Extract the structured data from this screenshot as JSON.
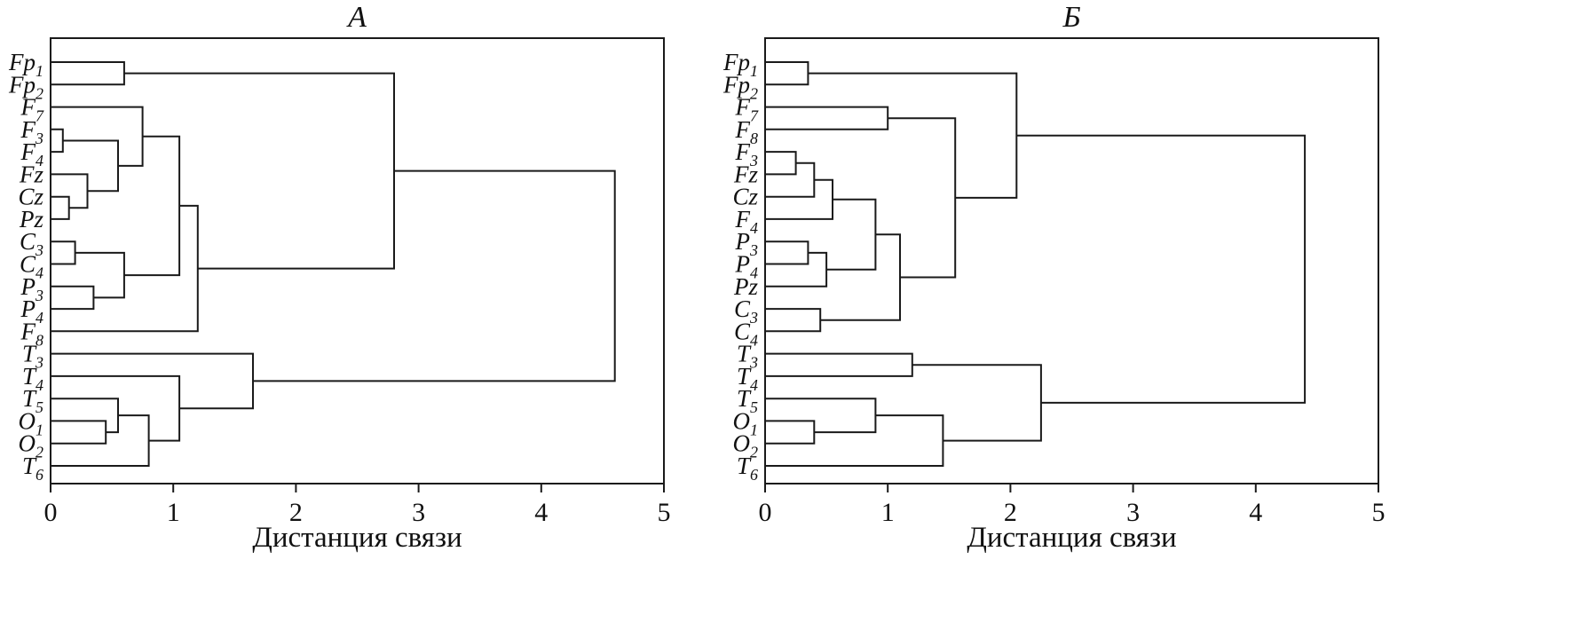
{
  "figure": {
    "background": "#ffffff",
    "line_color": "#1a1a1a",
    "panel_count": 2
  },
  "chart_data": [
    {
      "type": "dendrogram",
      "title": "А",
      "orientation": "horizontal",
      "xlabel": "Дистанция связи",
      "xlim": [
        0,
        5
      ],
      "xticks": [
        0,
        1,
        2,
        3,
        4,
        5
      ],
      "grid": false,
      "leaves": [
        "Fp1",
        "Fp2",
        "F7",
        "F3",
        "F4",
        "Fz",
        "Cz",
        "Pz",
        "C3",
        "C4",
        "P3",
        "P4",
        "F8",
        "T3",
        "T4",
        "T5",
        "O1",
        "O2",
        "T6"
      ],
      "merges": [
        [
          "a0",
          "F3",
          "F4",
          0.1
        ],
        [
          "a1",
          "Cz",
          "Pz",
          0.15
        ],
        [
          "a2",
          "Fz",
          "a1",
          0.3
        ],
        [
          "a3",
          "a0",
          "a2",
          0.55
        ],
        [
          "a4",
          "F7",
          "a3",
          0.75
        ],
        [
          "a5",
          "C3",
          "C4",
          0.2
        ],
        [
          "a6",
          "P3",
          "P4",
          0.35
        ],
        [
          "a7",
          "a5",
          "a6",
          0.6
        ],
        [
          "a8",
          "a4",
          "a7",
          1.05
        ],
        [
          "a9",
          "a8",
          "F8",
          1.2
        ],
        [
          "a10",
          "Fp1",
          "Fp2",
          0.6
        ],
        [
          "a11",
          "a10",
          "a9",
          2.8
        ],
        [
          "a12",
          "O1",
          "O2",
          0.45
        ],
        [
          "a13",
          "T5",
          "a12",
          0.55
        ],
        [
          "a14",
          "a13",
          "T6",
          0.8
        ],
        [
          "a15",
          "T4",
          "a14",
          1.05
        ],
        [
          "a16",
          "T3",
          "a15",
          1.65
        ],
        [
          "a17",
          "a11",
          "a16",
          4.6
        ]
      ]
    },
    {
      "type": "dendrogram",
      "title": "Б",
      "orientation": "horizontal",
      "xlabel": "Дистанция связи",
      "xlim": [
        0,
        5
      ],
      "xticks": [
        0,
        1,
        2,
        3,
        4,
        5
      ],
      "grid": false,
      "leaves": [
        "Fp1",
        "Fp2",
        "F7",
        "F8",
        "F3",
        "Fz",
        "Cz",
        "F4",
        "P3",
        "P4",
        "Pz",
        "C3",
        "C4",
        "T3",
        "T4",
        "T5",
        "O1",
        "O2",
        "T6"
      ],
      "merges": [
        [
          "b0",
          "Fp1",
          "Fp2",
          0.35
        ],
        [
          "b1",
          "F7",
          "F8",
          1.0
        ],
        [
          "b2",
          "F3",
          "Fz",
          0.25
        ],
        [
          "b3",
          "b2",
          "Cz",
          0.4
        ],
        [
          "b4",
          "b3",
          "F4",
          0.55
        ],
        [
          "b5",
          "P3",
          "P4",
          0.35
        ],
        [
          "b6",
          "b5",
          "Pz",
          0.5
        ],
        [
          "b7",
          "b4",
          "b6",
          0.9
        ],
        [
          "b8",
          "C3",
          "C4",
          0.45
        ],
        [
          "b9",
          "b7",
          "b8",
          1.1
        ],
        [
          "b10",
          "b1",
          "b9",
          1.55
        ],
        [
          "b11",
          "b0",
          "b10",
          2.05
        ],
        [
          "b12",
          "T3",
          "T4",
          1.2
        ],
        [
          "b13",
          "O1",
          "O2",
          0.4
        ],
        [
          "b14",
          "T5",
          "b13",
          0.9
        ],
        [
          "b15",
          "b14",
          "T6",
          1.45
        ],
        [
          "b16",
          "b12",
          "b15",
          2.25
        ],
        [
          "b17",
          "b11",
          "b16",
          4.4
        ]
      ]
    }
  ]
}
